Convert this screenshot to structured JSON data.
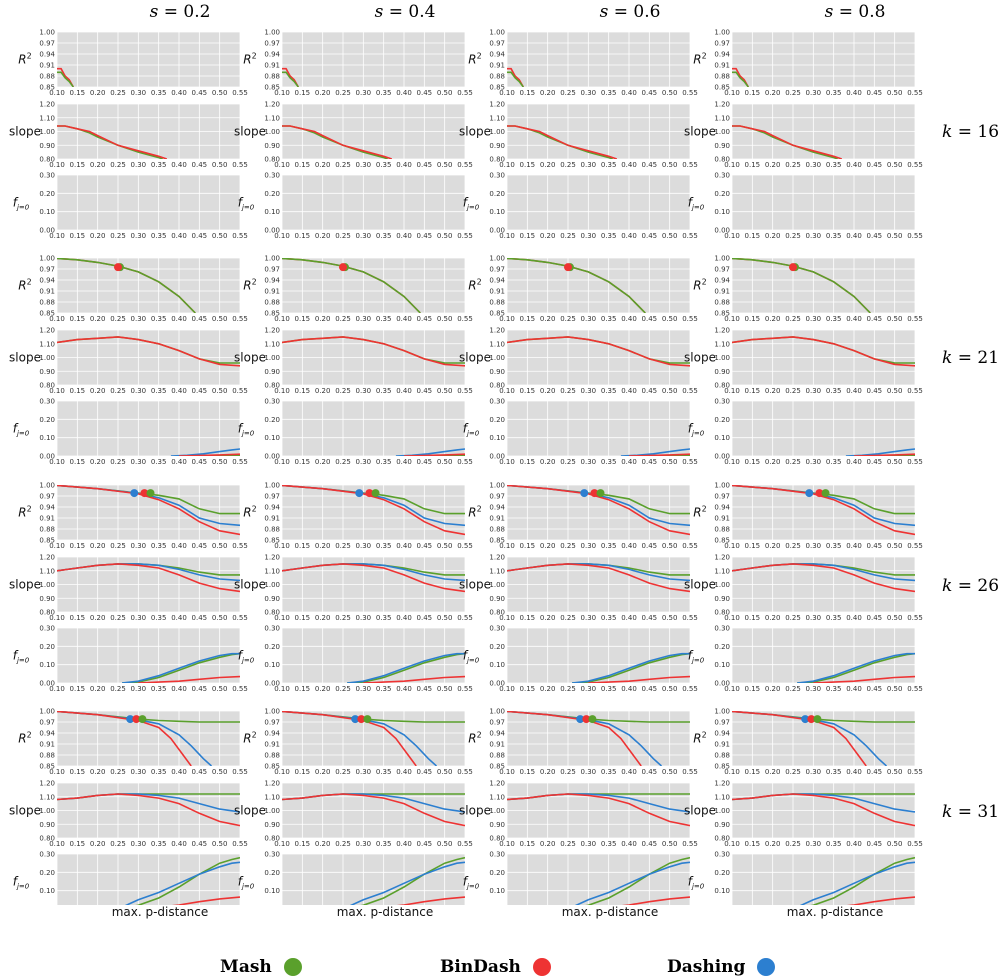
{
  "chart_data": {
    "type": "line",
    "layout": "grid of 12 rows x 4 columns",
    "column_titles": [
      "s = 0.2",
      "s = 0.4",
      "s = 0.6",
      "s = 0.8"
    ],
    "column_s_values": [
      "0.2",
      "0.4",
      "0.6",
      "0.8"
    ],
    "row_groups": [
      {
        "label": "k = 16",
        "k": "16"
      },
      {
        "label": "k = 21",
        "k": "21"
      },
      {
        "label": "k = 26",
        "k": "26"
      },
      {
        "label": "k = 31",
        "k": "31"
      }
    ],
    "metrics": [
      {
        "key": "r2",
        "ylabel": "R²",
        "ylim": [
          0.85,
          1.0
        ],
        "yticks": [
          "0.85",
          "0.88",
          "0.91",
          "0.94",
          "0.97",
          "1.00"
        ]
      },
      {
        "key": "slope",
        "ylabel": "slope",
        "ylim": [
          0.8,
          1.2
        ],
        "yticks": [
          "0.80",
          "0.90",
          "1.00",
          "1.10",
          "1.20"
        ]
      },
      {
        "key": "fj0",
        "ylabel": "f_{j=0}",
        "ylim": [
          0.0,
          0.3
        ],
        "yticks": [
          "0.00",
          "0.10",
          "0.20",
          "0.30"
        ]
      }
    ],
    "xlabel": "max. p-distance",
    "xlim": [
      0.1,
      0.55
    ],
    "xticks": [
      "0.10",
      "0.15",
      "0.20",
      "0.25",
      "0.30",
      "0.35",
      "0.40",
      "0.45",
      "0.50",
      "0.55"
    ],
    "grid": true,
    "legend": {
      "placement": "bottom",
      "items": [
        {
          "name": "Mash",
          "color": "#5aa02c"
        },
        {
          "name": "BinDash",
          "color": "#ee3333"
        },
        {
          "name": "Dashing",
          "color": "#2c7fd0"
        }
      ]
    },
    "colors": {
      "Mash": "#5aa02c",
      "BinDash": "#ee3333",
      "Dashing": "#2c7fd0",
      "panel_bg": "#dcdcdc"
    },
    "series": {
      "16": {
        "r2": {
          "BinDash": {
            "x": [
              0.1,
              0.11,
              0.12,
              0.13,
              0.14
            ],
            "y": [
              0.9,
              0.9,
              0.88,
              0.87,
              0.85
            ]
          },
          "Mash": {
            "x": [
              0.1,
              0.11,
              0.12,
              0.13,
              0.14
            ],
            "y": [
              0.89,
              0.89,
              0.875,
              0.865,
              0.85
            ]
          }
        },
        "slope": {
          "BinDash": {
            "x": [
              0.1,
              0.12,
              0.15,
              0.18,
              0.2,
              0.25,
              0.3,
              0.35,
              0.37
            ],
            "y": [
              1.04,
              1.04,
              1.02,
              1.0,
              0.97,
              0.9,
              0.86,
              0.82,
              0.8
            ]
          },
          "Mash": {
            "x": [
              0.1,
              0.12,
              0.15,
              0.18,
              0.2,
              0.25,
              0.3,
              0.35,
              0.36
            ],
            "y": [
              1.04,
              1.04,
              1.02,
              0.99,
              0.96,
              0.9,
              0.85,
              0.81,
              0.8
            ]
          }
        },
        "fj0": {}
      },
      "21": {
        "r2": {
          "BinDash": {
            "x": [
              0.1,
              0.15,
              0.2,
              0.25,
              0.3,
              0.35,
              0.4,
              0.44
            ],
            "y": [
              0.999,
              0.995,
              0.988,
              0.978,
              0.962,
              0.935,
              0.895,
              0.85
            ]
          },
          "Mash": {
            "x": [
              0.1,
              0.15,
              0.2,
              0.25,
              0.3,
              0.35,
              0.4,
              0.44
            ],
            "y": [
              0.999,
              0.995,
              0.988,
              0.978,
              0.962,
              0.935,
              0.895,
              0.85
            ]
          }
        },
        "slope": {
          "BinDash": {
            "x": [
              0.1,
              0.15,
              0.2,
              0.25,
              0.3,
              0.35,
              0.4,
              0.45,
              0.5,
              0.55
            ],
            "y": [
              1.11,
              1.13,
              1.14,
              1.15,
              1.13,
              1.1,
              1.05,
              0.99,
              0.95,
              0.94
            ]
          },
          "Mash": {
            "x": [
              0.1,
              0.15,
              0.2,
              0.25,
              0.3,
              0.35,
              0.4,
              0.45,
              0.5,
              0.55
            ],
            "y": [
              1.11,
              1.13,
              1.14,
              1.15,
              1.13,
              1.1,
              1.05,
              0.99,
              0.96,
              0.96
            ]
          }
        },
        "fj0": {
          "Dashing": {
            "x": [
              0.38,
              0.42,
              0.46,
              0.5,
              0.53,
              0.55
            ],
            "y": [
              0.0,
              0.004,
              0.012,
              0.024,
              0.033,
              0.038
            ]
          },
          "BinDash": {
            "x": [
              0.4,
              0.45,
              0.5,
              0.55
            ],
            "y": [
              0.0,
              0.002,
              0.006,
              0.01
            ]
          },
          "Mash": {
            "x": [
              0.4,
              0.45,
              0.5,
              0.55
            ],
            "y": [
              0.0,
              0.001,
              0.002,
              0.003
            ]
          }
        }
      },
      "26": {
        "r2": {
          "Mash": {
            "x": [
              0.1,
              0.2,
              0.3,
              0.35,
              0.4,
              0.45,
              0.5,
              0.55
            ],
            "y": [
              0.999,
              0.99,
              0.978,
              0.972,
              0.962,
              0.935,
              0.922,
              0.922
            ]
          },
          "Dashing": {
            "x": [
              0.1,
              0.2,
              0.3,
              0.35,
              0.4,
              0.45,
              0.5,
              0.55
            ],
            "y": [
              0.999,
              0.99,
              0.977,
              0.965,
              0.945,
              0.91,
              0.895,
              0.89
            ]
          },
          "BinDash": {
            "x": [
              0.1,
              0.2,
              0.3,
              0.35,
              0.4,
              0.45,
              0.5,
              0.55
            ],
            "y": [
              0.999,
              0.99,
              0.976,
              0.96,
              0.935,
              0.9,
              0.875,
              0.865
            ]
          }
        },
        "slope": {
          "Mash": {
            "x": [
              0.1,
              0.15,
              0.2,
              0.25,
              0.3,
              0.35,
              0.4,
              0.45,
              0.5,
              0.55
            ],
            "y": [
              1.1,
              1.12,
              1.14,
              1.15,
              1.15,
              1.14,
              1.12,
              1.09,
              1.07,
              1.07
            ]
          },
          "Dashing": {
            "x": [
              0.1,
              0.15,
              0.2,
              0.25,
              0.3,
              0.35,
              0.4,
              0.45,
              0.5,
              0.55
            ],
            "y": [
              1.1,
              1.12,
              1.14,
              1.15,
              1.15,
              1.14,
              1.11,
              1.07,
              1.04,
              1.03
            ]
          },
          "BinDash": {
            "x": [
              0.1,
              0.15,
              0.2,
              0.25,
              0.3,
              0.35,
              0.4,
              0.45,
              0.5,
              0.55
            ],
            "y": [
              1.1,
              1.12,
              1.14,
              1.15,
              1.14,
              1.12,
              1.07,
              1.01,
              0.97,
              0.95
            ]
          }
        },
        "fj0": {
          "Mash": {
            "x": [
              0.26,
              0.3,
              0.35,
              0.4,
              0.45,
              0.5,
              0.53,
              0.55
            ],
            "y": [
              0.0,
              0.005,
              0.03,
              0.07,
              0.11,
              0.14,
              0.155,
              0.16
            ]
          },
          "Dashing": {
            "x": [
              0.26,
              0.3,
              0.35,
              0.4,
              0.45,
              0.5,
              0.53,
              0.55
            ],
            "y": [
              0.0,
              0.01,
              0.04,
              0.08,
              0.12,
              0.15,
              0.16,
              0.16
            ]
          },
          "BinDash": {
            "x": [
              0.3,
              0.35,
              0.4,
              0.45,
              0.5,
              0.55
            ],
            "y": [
              0.0,
              0.005,
              0.01,
              0.02,
              0.03,
              0.035
            ]
          }
        }
      },
      "31": {
        "r2": {
          "Mash": {
            "x": [
              0.1,
              0.2,
              0.3,
              0.35,
              0.4,
              0.45,
              0.5,
              0.55
            ],
            "y": [
              0.999,
              0.99,
              0.978,
              0.974,
              0.972,
              0.97,
              0.97,
              0.97
            ]
          },
          "Dashing": {
            "x": [
              0.1,
              0.2,
              0.3,
              0.35,
              0.4,
              0.43,
              0.46,
              0.48
            ],
            "y": [
              0.999,
              0.99,
              0.976,
              0.965,
              0.935,
              0.905,
              0.87,
              0.85
            ]
          },
          "BinDash": {
            "x": [
              0.1,
              0.2,
              0.3,
              0.35,
              0.38,
              0.41,
              0.43
            ],
            "y": [
              0.999,
              0.99,
              0.974,
              0.955,
              0.925,
              0.88,
              0.85
            ]
          }
        },
        "slope": {
          "Mash": {
            "x": [
              0.1,
              0.15,
              0.2,
              0.25,
              0.3,
              0.35,
              0.4,
              0.45,
              0.5,
              0.55
            ],
            "y": [
              1.08,
              1.09,
              1.11,
              1.12,
              1.12,
              1.12,
              1.12,
              1.12,
              1.12,
              1.12
            ]
          },
          "Dashing": {
            "x": [
              0.1,
              0.15,
              0.2,
              0.25,
              0.3,
              0.35,
              0.4,
              0.45,
              0.5,
              0.55
            ],
            "y": [
              1.08,
              1.09,
              1.11,
              1.12,
              1.12,
              1.11,
              1.09,
              1.05,
              1.01,
              0.99
            ]
          },
          "BinDash": {
            "x": [
              0.1,
              0.15,
              0.2,
              0.25,
              0.3,
              0.35,
              0.4,
              0.45,
              0.5,
              0.55
            ],
            "y": [
              1.08,
              1.09,
              1.11,
              1.12,
              1.11,
              1.09,
              1.05,
              0.98,
              0.92,
              0.89
            ]
          }
        },
        "fj0": {
          "Mash": {
            "x": [
              0.25,
              0.3,
              0.35,
              0.4,
              0.45,
              0.5,
              0.53,
              0.55
            ],
            "y": [
              0.0,
              0.02,
              0.06,
              0.12,
              0.19,
              0.25,
              0.27,
              0.28
            ]
          },
          "Dashing": {
            "x": [
              0.25,
              0.3,
              0.35,
              0.4,
              0.45,
              0.5,
              0.53,
              0.55
            ],
            "y": [
              0.0,
              0.05,
              0.09,
              0.14,
              0.19,
              0.23,
              0.25,
              0.255
            ]
          },
          "BinDash": {
            "x": [
              0.28,
              0.32,
              0.36,
              0.4,
              0.45,
              0.5,
              0.55
            ],
            "y": [
              0.0,
              0.005,
              0.012,
              0.022,
              0.04,
              0.055,
              0.065
            ]
          }
        }
      }
    },
    "markers": {
      "16": [],
      "21": [
        {
          "series": "Mash",
          "x": 0.255,
          "y": 0.975
        },
        {
          "series": "BinDash",
          "x": 0.25,
          "y": 0.975
        }
      ],
      "26": [
        {
          "series": "Dashing",
          "x": 0.29,
          "y": 0.978
        },
        {
          "series": "BinDash",
          "x": 0.315,
          "y": 0.978
        },
        {
          "series": "Mash",
          "x": 0.33,
          "y": 0.978
        }
      ],
      "31": [
        {
          "series": "Dashing",
          "x": 0.28,
          "y": 0.978
        },
        {
          "series": "BinDash",
          "x": 0.295,
          "y": 0.978
        },
        {
          "series": "Mash",
          "x": 0.31,
          "y": 0.978
        }
      ]
    }
  }
}
